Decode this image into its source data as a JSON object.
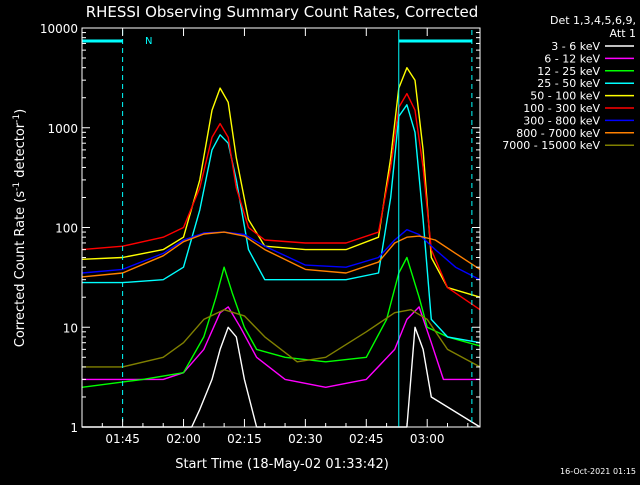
{
  "chart_data": {
    "type": "line",
    "title": "RHESSI Observing Summary Count Rates, Corrected",
    "ylabel_main": "Corrected Count Rate (s",
    "ylabel_sup": "-1",
    "ylabel_end": " detector",
    "ylabel_sup2": "-1",
    "ylabel_close": ")",
    "xlabel": "Start Time (18-May-02 01:33:42)",
    "yscale": "log",
    "ylim": [
      1,
      10000
    ],
    "xlim": [
      "01:35",
      "03:13"
    ],
    "x_ticks": [
      "01:45",
      "02:00",
      "02:15",
      "02:30",
      "02:45",
      "03:00"
    ],
    "y_ticks": [
      "1",
      "10",
      "100",
      "1000",
      "10000"
    ],
    "grid": false,
    "legend_header": [
      "Det 1,3,4,5,6,9,",
      "Att 1"
    ],
    "legend_placement": "right",
    "annotations": {
      "night_marker": "N",
      "footer": "16-Oct-2021 01:15"
    },
    "series": [
      {
        "name": "3 - 6 keV",
        "color": "#ffffff",
        "x": [
          "01:35",
          "02:02",
          "02:04",
          "02:07",
          "02:09",
          "02:11",
          "02:13",
          "02:15",
          "02:18",
          "02:55",
          "02:57",
          "02:59",
          "03:01",
          "03:13"
        ],
        "values": [
          1,
          1,
          1.5,
          3,
          6,
          10,
          8,
          3,
          1,
          1,
          10,
          6,
          2,
          1
        ]
      },
      {
        "name": "6 - 12 keV",
        "color": "#ff00ff",
        "x": [
          "01:35",
          "01:45",
          "01:55",
          "02:00",
          "02:05",
          "02:09",
          "02:11",
          "02:14",
          "02:18",
          "02:25",
          "02:35",
          "02:45",
          "02:52",
          "02:55",
          "02:58",
          "03:01",
          "03:04",
          "03:13"
        ],
        "values": [
          3,
          3,
          3,
          3.5,
          6,
          14,
          16,
          10,
          5,
          3,
          2.5,
          3,
          6,
          12,
          16,
          7,
          3,
          3
        ]
      },
      {
        "name": "12 - 25 keV",
        "color": "#00ff00",
        "x": [
          "01:35",
          "01:50",
          "02:00",
          "02:05",
          "02:08",
          "02:10",
          "02:12",
          "02:15",
          "02:18",
          "02:25",
          "02:35",
          "02:45",
          "02:50",
          "02:53",
          "02:55",
          "02:58",
          "03:00",
          "03:05",
          "03:13"
        ],
        "values": [
          2.5,
          3,
          3.5,
          8,
          20,
          40,
          22,
          10,
          6,
          5,
          4.5,
          5,
          12,
          35,
          50,
          20,
          10,
          8,
          6.5
        ]
      },
      {
        "name": "25 - 50 keV",
        "color": "#00ffff",
        "x": [
          "01:35",
          "01:45",
          "01:55",
          "02:00",
          "02:04",
          "02:07",
          "02:09",
          "02:11",
          "02:13",
          "02:16",
          "02:20",
          "02:30",
          "02:40",
          "02:48",
          "02:51",
          "02:53",
          "02:55",
          "02:57",
          "02:59",
          "03:01",
          "03:05",
          "03:13"
        ],
        "values": [
          28,
          28,
          30,
          40,
          150,
          600,
          850,
          700,
          300,
          60,
          30,
          30,
          30,
          35,
          200,
          1300,
          1700,
          900,
          120,
          12,
          8,
          7
        ]
      },
      {
        "name": "50 - 100 keV",
        "color": "#ffff00",
        "x": [
          "01:35",
          "01:45",
          "01:55",
          "02:00",
          "02:04",
          "02:07",
          "02:09",
          "02:11",
          "02:13",
          "02:16",
          "02:20",
          "02:30",
          "02:40",
          "02:48",
          "02:51",
          "02:53",
          "02:55",
          "02:57",
          "02:59",
          "03:01",
          "03:05",
          "03:13"
        ],
        "values": [
          48,
          50,
          60,
          80,
          300,
          1500,
          2500,
          1800,
          500,
          120,
          65,
          60,
          60,
          80,
          500,
          2500,
          4000,
          3000,
          600,
          50,
          25,
          20
        ]
      },
      {
        "name": "100 - 300 keV",
        "color": "#ff0000",
        "x": [
          "01:35",
          "01:45",
          "01:55",
          "02:00",
          "02:04",
          "02:07",
          "02:09",
          "02:11",
          "02:13",
          "02:16",
          "02:20",
          "02:30",
          "02:40",
          "02:48",
          "02:51",
          "02:53",
          "02:55",
          "02:57",
          "02:59",
          "03:01",
          "03:05",
          "03:13"
        ],
        "values": [
          60,
          65,
          80,
          100,
          250,
          800,
          1100,
          800,
          250,
          100,
          75,
          70,
          70,
          90,
          400,
          1600,
          2200,
          1500,
          400,
          60,
          25,
          15
        ]
      },
      {
        "name": "300 - 800 keV",
        "color": "#0000ff",
        "x": [
          "01:35",
          "01:45",
          "01:55",
          "02:00",
          "02:05",
          "02:10",
          "02:15",
          "02:20",
          "02:30",
          "02:40",
          "02:48",
          "02:52",
          "02:55",
          "02:58",
          "03:02",
          "03:07",
          "03:13"
        ],
        "values": [
          35,
          38,
          55,
          75,
          88,
          90,
          85,
          65,
          42,
          40,
          50,
          75,
          95,
          85,
          60,
          40,
          30
        ]
      },
      {
        "name": "800 - 7000 keV",
        "color": "#ff8000",
        "x": [
          "01:35",
          "01:45",
          "01:55",
          "02:00",
          "02:05",
          "02:10",
          "02:15",
          "02:20",
          "02:30",
          "02:40",
          "02:48",
          "02:52",
          "02:55",
          "02:58",
          "03:02",
          "03:07",
          "03:13"
        ],
        "values": [
          32,
          35,
          52,
          72,
          86,
          90,
          82,
          60,
          38,
          35,
          45,
          70,
          80,
          82,
          75,
          55,
          38
        ]
      },
      {
        "name": "7000 - 15000 keV",
        "color": "#808000",
        "x": [
          "01:35",
          "01:45",
          "01:55",
          "02:00",
          "02:05",
          "02:10",
          "02:15",
          "02:20",
          "02:28",
          "02:35",
          "02:45",
          "02:52",
          "02:56",
          "03:00",
          "03:05",
          "03:13"
        ],
        "values": [
          4,
          4,
          5,
          7,
          12,
          15,
          13,
          8,
          4.5,
          5,
          9,
          14,
          15,
          12,
          6,
          4
        ]
      }
    ]
  }
}
